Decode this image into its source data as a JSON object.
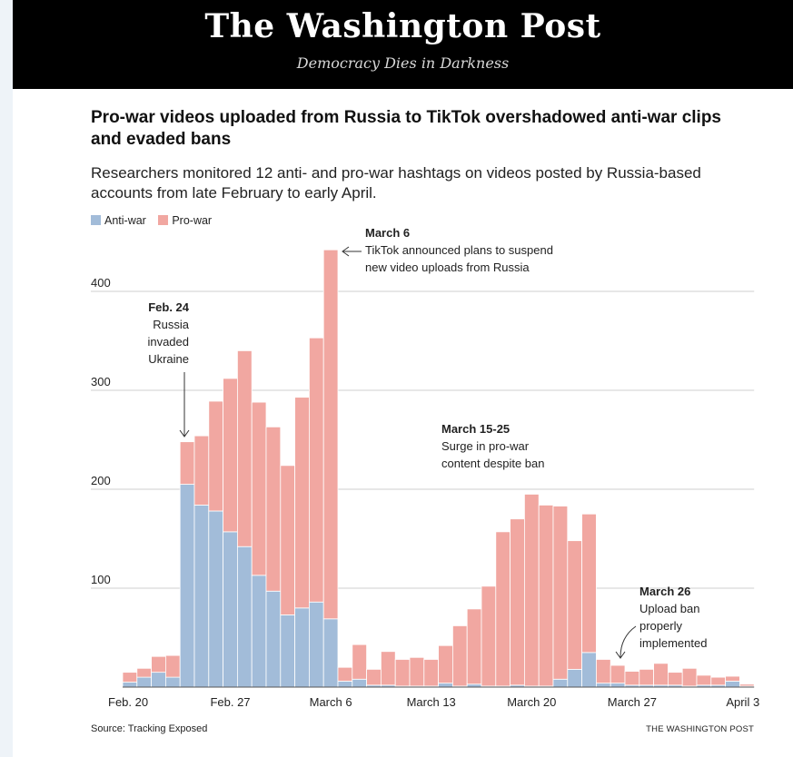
{
  "masthead": {
    "name": "The Washington Post",
    "tagline": "Democracy Dies in Darkness"
  },
  "title": "Pro-war videos uploaded from Russia to TikTok overshadowed anti-war clips and evaded bans",
  "subtitle": "Researchers monitored 12 anti- and pro-war hashtags on videos posted by Russia-based accounts from late February to early April.",
  "source": "Source: Tracking Exposed",
  "credit": "THE WASHINGTON POST",
  "colors": {
    "anti": "#a2bcd9",
    "pro": "#f1a7a1",
    "background": "#ffffff",
    "masthead": "#000000"
  },
  "chart_data": {
    "type": "bar",
    "stacked": true,
    "ylim": [
      0,
      440
    ],
    "yticks": [
      100,
      200,
      300,
      400
    ],
    "grid": true,
    "legend_position": "top-left",
    "x_tick_labels": [
      {
        "label": "Feb. 20",
        "index": 0
      },
      {
        "label": "Feb. 27",
        "index": 7
      },
      {
        "label": "March 6",
        "index": 14
      },
      {
        "label": "March 13",
        "index": 21
      },
      {
        "label": "March 20",
        "index": 28
      },
      {
        "label": "March 27",
        "index": 35
      },
      {
        "label": "April 3",
        "index": 42
      }
    ],
    "series": [
      {
        "name": "Anti-war",
        "color": "#a2bcd9",
        "values": [
          5,
          10,
          15,
          10,
          205,
          184,
          178,
          157,
          142,
          113,
          97,
          73,
          80,
          86,
          69,
          6,
          8,
          2,
          2,
          1,
          1,
          1,
          4,
          1,
          3,
          1,
          1,
          2,
          1,
          1,
          8,
          18,
          35,
          4,
          4,
          2,
          2,
          2,
          2,
          1,
          2,
          2,
          6,
          1
        ]
      },
      {
        "name": "Pro-war",
        "color": "#f1a7a1",
        "values": [
          10,
          9,
          16,
          22,
          43,
          70,
          111,
          155,
          198,
          175,
          166,
          151,
          213,
          267,
          373,
          14,
          35,
          16,
          34,
          27,
          29,
          27,
          38,
          61,
          76,
          101,
          156,
          168,
          194,
          183,
          175,
          130,
          140,
          24,
          18,
          14,
          16,
          22,
          13,
          18,
          10,
          8,
          5,
          2
        ]
      }
    ],
    "annotations": [
      {
        "title": "Feb. 24",
        "text": [
          "Russia",
          "invaded",
          "Ukraine"
        ]
      },
      {
        "title": "March 6",
        "text": [
          "TikTok announced plans to suspend",
          "new video uploads from Russia"
        ]
      },
      {
        "title": "March 15-25",
        "text": [
          "Surge in pro-war",
          "content despite ban"
        ]
      },
      {
        "title": "March 26",
        "text": [
          "Upload ban",
          "properly",
          "implemented"
        ]
      }
    ]
  }
}
